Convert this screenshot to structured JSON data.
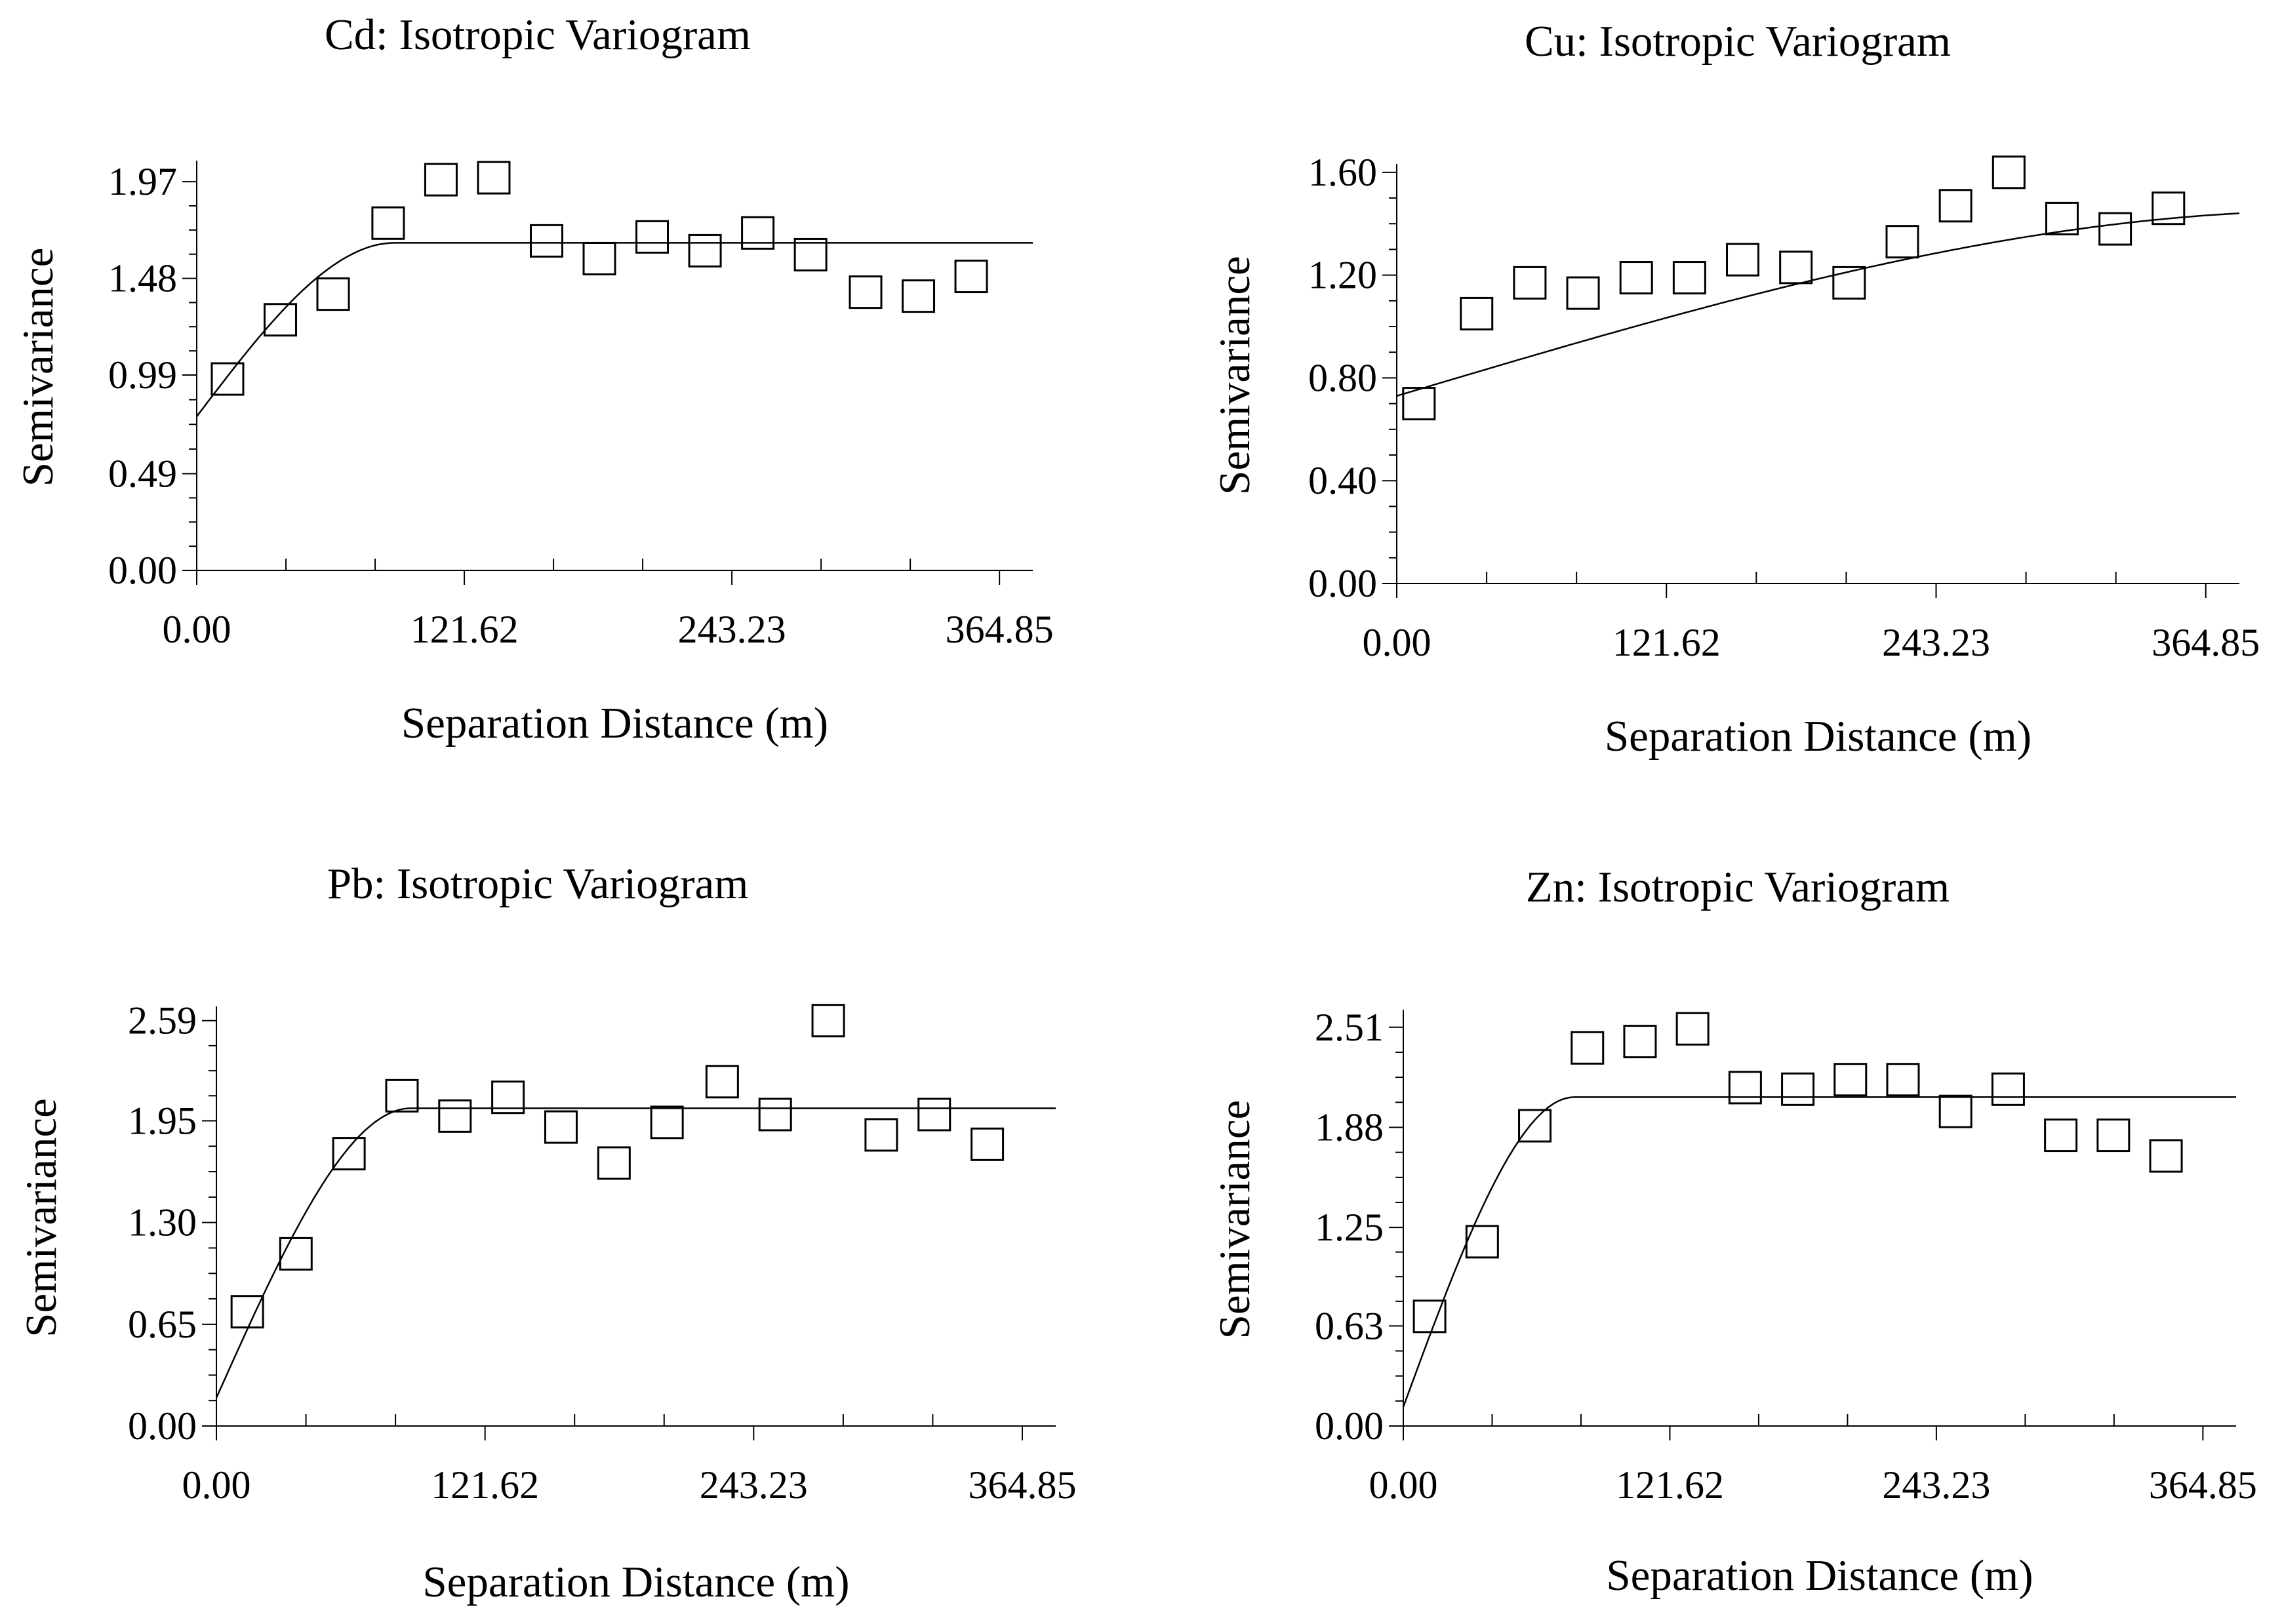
{
  "chart_data": [
    {
      "type": "scatter",
      "title": "Cd: Isotropic Variogram",
      "xlabel": "Separation Distance (m)",
      "ylabel": "Semivariance",
      "xlim": [
        0,
        380
      ],
      "ylim": [
        0,
        2.06
      ],
      "xtick_labels": [
        "0.00",
        "121.62",
        "243.23",
        "364.85"
      ],
      "xtick_values": [
        0,
        121.62,
        243.23,
        364.85
      ],
      "ytick_labels": [
        "0.00",
        "0.49",
        "0.99",
        "1.48",
        "1.97"
      ],
      "ytick_values": [
        0,
        0.49,
        0.99,
        1.48,
        1.97
      ],
      "x": [
        14,
        38,
        62,
        87,
        111,
        135,
        159,
        183,
        207,
        231,
        255,
        279,
        304,
        328,
        352
      ],
      "y": [
        0.97,
        1.27,
        1.4,
        1.76,
        1.98,
        1.99,
        1.67,
        1.58,
        1.69,
        1.62,
        1.71,
        1.6,
        1.41,
        1.39,
        1.49
      ],
      "model": {
        "nugget": 0.78,
        "sill": 1.66,
        "range": 90
      }
    },
    {
      "type": "scatter",
      "title": "Cu: Isotropic Variogram",
      "xlabel": "Separation Distance (m)",
      "ylabel": "Semivariance",
      "xlim": [
        0,
        380
      ],
      "ylim": [
        0,
        1.62
      ],
      "xtick_labels": [
        "0.00",
        "121.62",
        "243.23",
        "364.85"
      ],
      "xtick_values": [
        0,
        121.62,
        243.23,
        364.85
      ],
      "ytick_labels": [
        "0.00",
        "0.40",
        "0.80",
        "1.20",
        "1.60"
      ],
      "ytick_values": [
        0,
        0.4,
        0.8,
        1.2,
        1.6
      ],
      "x": [
        10,
        36,
        60,
        84,
        108,
        132,
        156,
        180,
        204,
        228,
        252,
        276,
        300,
        324,
        348
      ],
      "y": [
        0.7,
        1.05,
        1.17,
        1.13,
        1.19,
        1.19,
        1.26,
        1.23,
        1.17,
        1.33,
        1.47,
        1.6,
        1.42,
        1.38,
        1.46
      ],
      "model": {
        "nugget": 0.73,
        "sill": 1.45,
        "range": 420
      }
    },
    {
      "type": "scatter",
      "title": "Pb: Isotropic Variogram",
      "xlabel": "Separation Distance (m)",
      "ylabel": "Semivariance",
      "xlim": [
        0,
        380
      ],
      "ylim": [
        0,
        2.66
      ],
      "xtick_labels": [
        "0.00",
        "121.62",
        "243.23",
        "364.85"
      ],
      "xtick_values": [
        0,
        121.62,
        243.23,
        364.85
      ],
      "ytick_labels": [
        "0.00",
        "0.65",
        "1.30",
        "1.95",
        "2.59"
      ],
      "ytick_values": [
        0,
        0.65,
        1.3,
        1.95,
        2.59
      ],
      "x": [
        14,
        36,
        60,
        84,
        108,
        132,
        156,
        180,
        204,
        229,
        253,
        277,
        301,
        325,
        349
      ],
      "y": [
        0.73,
        1.1,
        1.74,
        2.11,
        1.98,
        2.1,
        1.91,
        1.68,
        1.94,
        2.2,
        1.99,
        2.59,
        1.86,
        1.99,
        1.8
      ],
      "model": {
        "nugget": 0.18,
        "sill": 2.03,
        "range": 88
      }
    },
    {
      "type": "scatter",
      "title": "Zn: Isotropic Variogram",
      "xlabel": "Separation Distance (m)",
      "ylabel": "Semivariance",
      "xlim": [
        0,
        380
      ],
      "ylim": [
        0,
        2.6
      ],
      "xtick_labels": [
        "0.00",
        "121.62",
        "243.23",
        "364.85"
      ],
      "xtick_values": [
        0,
        121.62,
        243.23,
        364.85
      ],
      "ytick_labels": [
        "0.00",
        "0.63",
        "1.25",
        "1.88",
        "2.51"
      ],
      "ytick_values": [
        0,
        0.63,
        1.25,
        1.88,
        2.51
      ],
      "x": [
        12,
        36,
        60,
        84,
        108,
        132,
        156,
        180,
        204,
        228,
        252,
        276,
        300,
        324,
        348
      ],
      "y": [
        0.69,
        1.16,
        1.89,
        2.38,
        2.42,
        2.5,
        2.13,
        2.12,
        2.18,
        2.18,
        1.98,
        2.12,
        1.83,
        1.83,
        1.7
      ],
      "model": {
        "nugget": 0.12,
        "sill": 2.07,
        "range": 78
      }
    }
  ]
}
